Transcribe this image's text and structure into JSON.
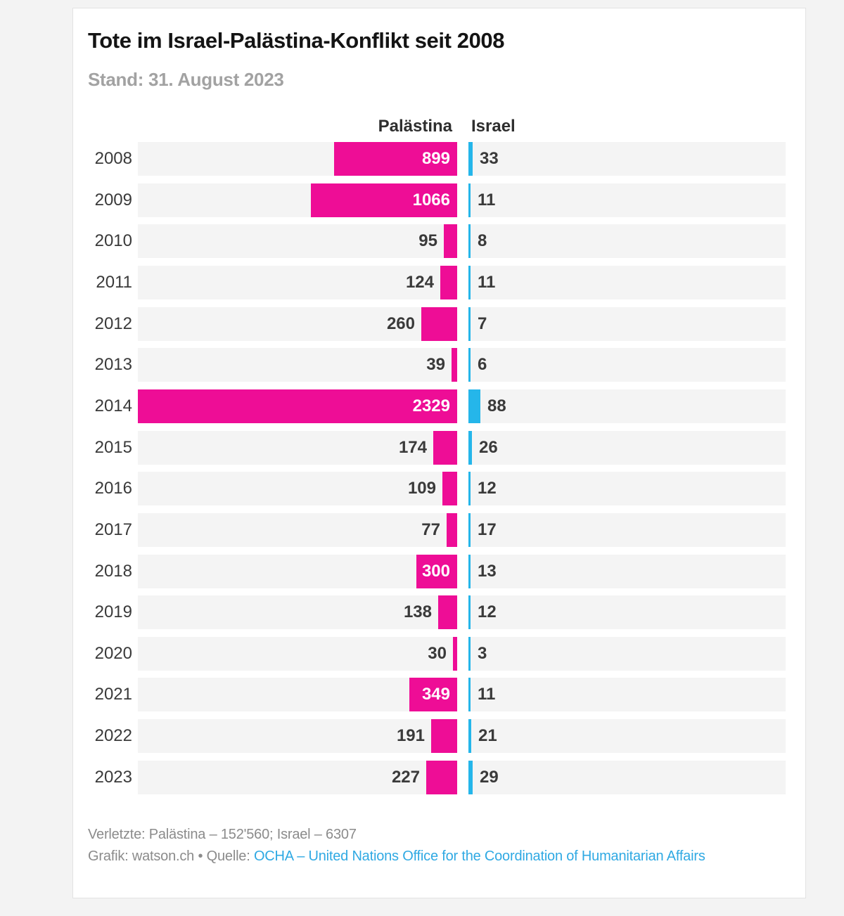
{
  "header": {
    "title": "Tote im Israel-Palästina-Konflikt seit 2008",
    "subtitle": "Stand: 31. August 2023"
  },
  "chart_data": {
    "type": "bar",
    "orientation": "diverging-horizontal",
    "title": "Tote im Israel-Palästina-Konflikt seit 2008",
    "subtitle": "Stand: 31. August 2023",
    "column_headers": {
      "left": "Palästina",
      "right": "Israel"
    },
    "categories": [
      "2008",
      "2009",
      "2010",
      "2011",
      "2012",
      "2013",
      "2014",
      "2015",
      "2016",
      "2017",
      "2018",
      "2019",
      "2020",
      "2021",
      "2022",
      "2023"
    ],
    "series": [
      {
        "name": "Palästina",
        "color": "#ee0d96",
        "values": [
          899,
          1066,
          95,
          124,
          260,
          39,
          2329,
          174,
          109,
          77,
          300,
          138,
          30,
          349,
          191,
          227
        ]
      },
      {
        "name": "Israel",
        "color": "#25b6ea",
        "values": [
          33,
          11,
          8,
          11,
          7,
          6,
          88,
          26,
          12,
          17,
          13,
          12,
          3,
          11,
          21,
          29
        ]
      }
    ],
    "scale_max": 2329,
    "xlim_left": [
      2329,
      0
    ],
    "xlim_right": [
      0,
      2329
    ],
    "grid": false,
    "legend_position": "top",
    "value_labels": "shown on every bar; inside bar in white when bar is wide enough, otherwise outside in dark gray"
  },
  "footer": {
    "injured_line": "Verletzte: Palästina – 152'560; Israel – 6307",
    "credit_prefix": "Grafik: watson.ch • Quelle: ",
    "source_link": "OCHA – United Nations Office for the Coordination of Humanitarian Affairs"
  },
  "colors": {
    "palestina_bar": "#ee0d96",
    "israel_bar": "#25b6ea",
    "row_background": "#f4f4f4",
    "link": "#2fa9e3",
    "title_text": "#141414",
    "subtitle_text": "#a2a2a2",
    "value_text": "#3a3a3a",
    "footer_text": "#8b8b8b",
    "card_background": "#ffffff",
    "page_background": "#f3f3f3"
  }
}
